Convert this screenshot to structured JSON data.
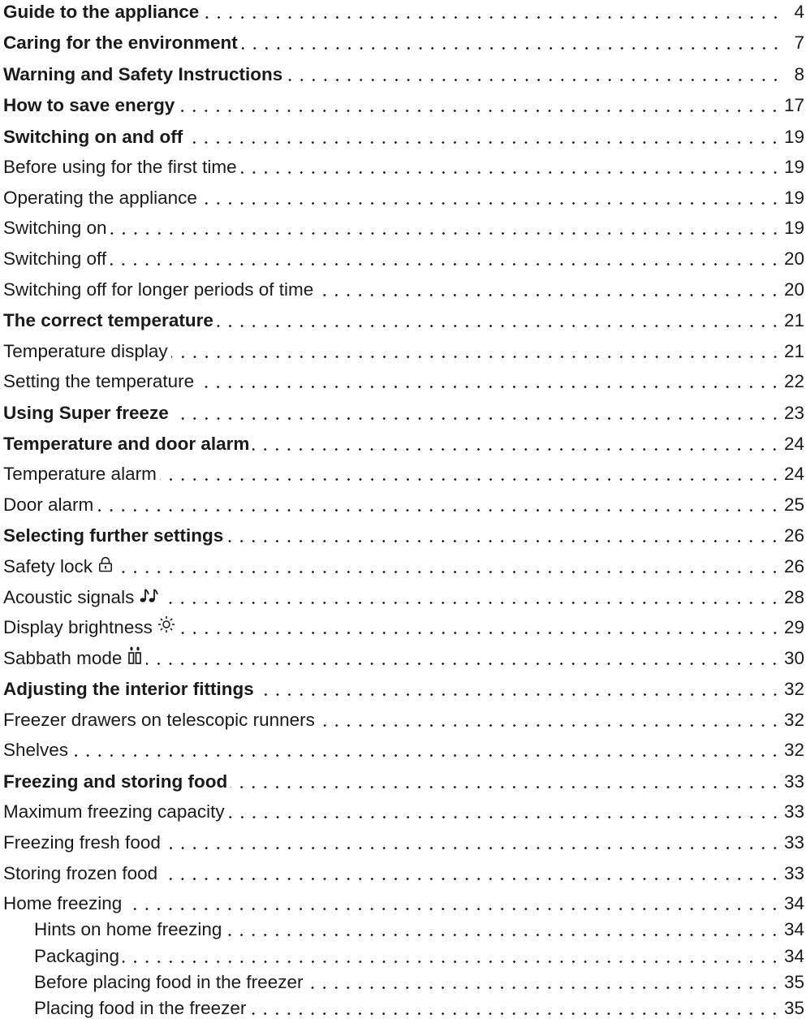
{
  "toc": [
    {
      "label": "Guide to the appliance",
      "page": "4",
      "level": 0
    },
    {
      "label": "Caring for the environment",
      "page": "7",
      "level": 0
    },
    {
      "label": "Warning and Safety Instructions",
      "page": "8",
      "level": 0
    },
    {
      "label": "How to save energy",
      "page": "17",
      "level": 0
    },
    {
      "label": "Switching on and off",
      "page": "19",
      "level": 0
    },
    {
      "label": "Before using for the first time",
      "page": "19",
      "level": 1
    },
    {
      "label": "Operating the appliance",
      "page": "19",
      "level": 1
    },
    {
      "label": "Switching on",
      "page": "19",
      "level": 1
    },
    {
      "label": "Switching off",
      "page": "20",
      "level": 1
    },
    {
      "label": "Switching off for longer periods of time",
      "page": "20",
      "level": 1
    },
    {
      "label": "The correct temperature",
      "page": "21",
      "level": 0
    },
    {
      "label": "Temperature display",
      "page": "21",
      "level": 1
    },
    {
      "label": "Setting the temperature",
      "page": "22",
      "level": 1
    },
    {
      "label": "Using Super freeze",
      "page": "23",
      "level": 0
    },
    {
      "label": "Temperature and door alarm",
      "page": "24",
      "level": 0
    },
    {
      "label": "Temperature alarm",
      "page": "24",
      "level": 1
    },
    {
      "label": "Door alarm",
      "page": "25",
      "level": 1
    },
    {
      "label": "Selecting further settings",
      "page": "26",
      "level": 0
    },
    {
      "label": "Safety lock",
      "page": "26",
      "level": 1,
      "icon": "padlock-icon"
    },
    {
      "label": "Acoustic signals",
      "page": "28",
      "level": 1,
      "icon": "music-notes-icon"
    },
    {
      "label": "Display brightness",
      "page": "29",
      "level": 1,
      "icon": "sun-brightness-icon"
    },
    {
      "label": "Sabbath mode",
      "page": "30",
      "level": 1,
      "icon": "candles-icon"
    },
    {
      "label": "Adjusting the interior fittings",
      "page": "32",
      "level": 0
    },
    {
      "label": "Freezer drawers on telescopic runners",
      "page": "32",
      "level": 1
    },
    {
      "label": "Shelves",
      "page": "32",
      "level": 1
    },
    {
      "label": "Freezing and storing food",
      "page": "33",
      "level": 0
    },
    {
      "label": "Maximum freezing capacity",
      "page": "33",
      "level": 1
    },
    {
      "label": "Freezing fresh food",
      "page": "33",
      "level": 1
    },
    {
      "label": "Storing frozen food",
      "page": "33",
      "level": 1
    },
    {
      "label": "Home freezing",
      "page": "34",
      "level": 1
    },
    {
      "label": "Hints on home freezing",
      "page": "34",
      "level": 2
    },
    {
      "label": "Packaging",
      "page": "34",
      "level": 2
    },
    {
      "label": "Before placing food in the freezer",
      "page": "35",
      "level": 2
    },
    {
      "label": "Placing food in the freezer",
      "page": "35",
      "level": 2
    }
  ]
}
